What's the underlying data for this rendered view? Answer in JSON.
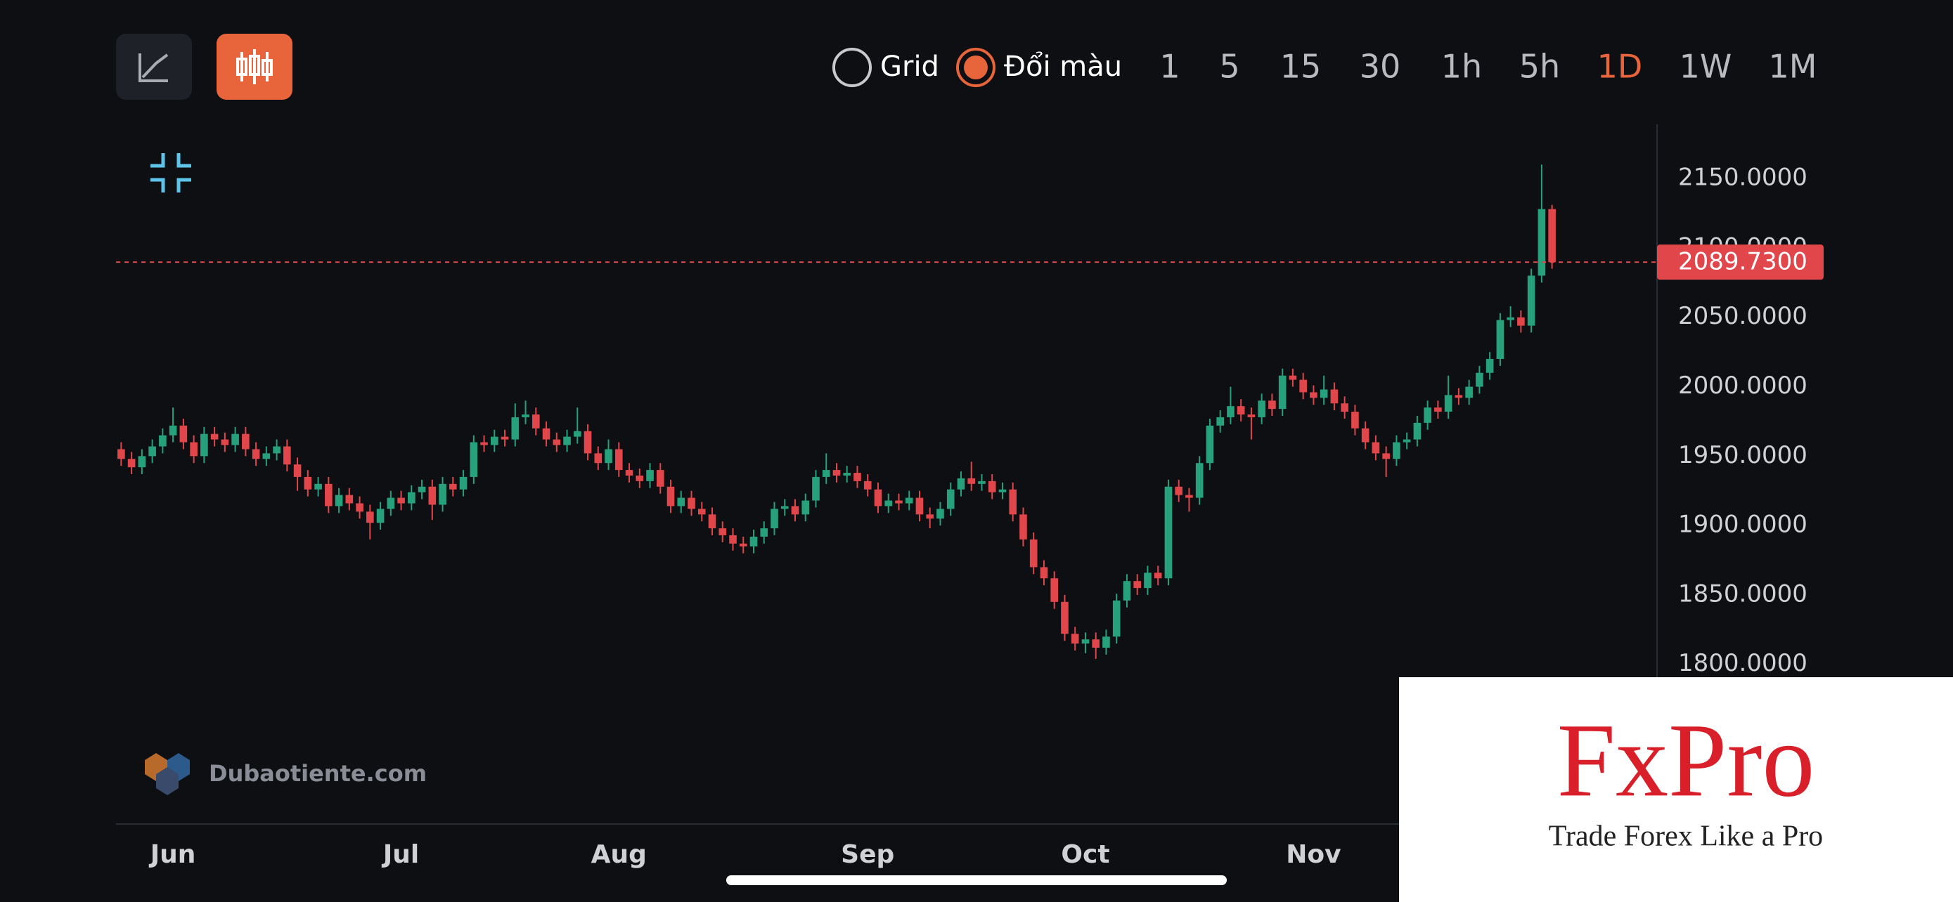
{
  "toolbar": {
    "options": [
      {
        "label": "Grid",
        "checked": false
      },
      {
        "label": "Đổi màu",
        "checked": true
      }
    ],
    "intervals": [
      "1",
      "5",
      "15",
      "30",
      "1h",
      "5h",
      "1D",
      "1W",
      "1M"
    ],
    "active_interval": "1D"
  },
  "chart_data": {
    "type": "candlestick",
    "grid": false,
    "up_color": "#26a17b",
    "down_color": "#e0464a",
    "categories": [
      null,
      null,
      null,
      null,
      null,
      "Jun",
      null,
      null,
      null,
      null,
      null,
      null,
      null,
      null,
      null,
      null,
      null,
      null,
      null,
      null,
      null,
      null,
      null,
      null,
      null,
      null,
      null,
      "Jul",
      null,
      null,
      null,
      null,
      null,
      null,
      null,
      null,
      null,
      null,
      null,
      null,
      null,
      null,
      null,
      null,
      null,
      null,
      null,
      null,
      "Aug",
      null,
      null,
      null,
      null,
      null,
      null,
      null,
      null,
      null,
      null,
      null,
      null,
      null,
      null,
      null,
      null,
      null,
      null,
      null,
      null,
      null,
      null,
      null,
      "Sep",
      null,
      null,
      null,
      null,
      null,
      null,
      null,
      null,
      null,
      null,
      null,
      null,
      null,
      null,
      null,
      null,
      null,
      null,
      null,
      null,
      "Oct",
      null,
      null,
      null,
      null,
      null,
      null,
      null,
      null,
      null,
      null,
      null,
      null,
      null,
      null,
      null,
      null,
      null,
      null,
      null,
      null,
      null,
      "Nov",
      null,
      null,
      null,
      null,
      null,
      null,
      null,
      null,
      null,
      null,
      null,
      null,
      null,
      null,
      null,
      null,
      null,
      null,
      null,
      null,
      null,
      null,
      null
    ],
    "open": [
      1955,
      1948,
      1942,
      1950,
      1957,
      1965,
      1972,
      1960,
      1950,
      1966,
      1962,
      1958,
      1966,
      1955,
      1948,
      1952,
      1957,
      1944,
      1935,
      1926,
      1930,
      1914,
      1922,
      1916,
      1910,
      1902,
      1912,
      1920,
      1916,
      1924,
      1928,
      1915,
      1930,
      1926,
      1935,
      1960,
      1958,
      1964,
      1962,
      1978,
      1980,
      1970,
      1962,
      1958,
      1964,
      1968,
      1952,
      1945,
      1955,
      1940,
      1936,
      1932,
      1940,
      1928,
      1914,
      1920,
      1912,
      1908,
      1898,
      1893,
      1887,
      1885,
      1892,
      1898,
      1912,
      1914,
      1908,
      1918,
      1935,
      1940,
      1936,
      1938,
      1932,
      1926,
      1914,
      1918,
      1916,
      1920,
      1908,
      1905,
      1912,
      1926,
      1934,
      1930,
      1932,
      1924,
      1926,
      1908,
      1890,
      1870,
      1862,
      1845,
      1822,
      1815,
      1818,
      1812,
      1820,
      1846,
      1860,
      1855,
      1866,
      1862,
      1928,
      1922,
      1920,
      1945,
      1972,
      1978,
      1986,
      1980,
      1978,
      1990,
      1984,
      2008,
      2005,
      1996,
      1992,
      1998,
      1988,
      1982,
      1970,
      1960,
      1952,
      1948,
      1960,
      1962,
      1974,
      1985,
      1982,
      1994,
      1992,
      2000,
      2010,
      2020,
      2048,
      2050,
      2044,
      2080,
      2128
    ],
    "high": [
      1960,
      1953,
      1955,
      1962,
      1970,
      1985,
      1977,
      1965,
      1971,
      1971,
      1967,
      1971,
      1971,
      1960,
      1957,
      1962,
      1962,
      1949,
      1940,
      1935,
      1935,
      1927,
      1927,
      1921,
      1915,
      1917,
      1925,
      1925,
      1929,
      1933,
      1933,
      1935,
      1935,
      1940,
      1965,
      1965,
      1969,
      1969,
      1988,
      1990,
      1985,
      1975,
      1967,
      1969,
      1985,
      1973,
      1957,
      1962,
      1960,
      1945,
      1941,
      1945,
      1945,
      1933,
      1925,
      1925,
      1917,
      1913,
      1903,
      1898,
      1892,
      1897,
      1903,
      1917,
      1919,
      1919,
      1923,
      1940,
      1952,
      1945,
      1943,
      1943,
      1937,
      1931,
      1923,
      1923,
      1925,
      1925,
      1913,
      1917,
      1931,
      1939,
      1946,
      1937,
      1937,
      1931,
      1931,
      1913,
      1895,
      1875,
      1867,
      1850,
      1827,
      1823,
      1823,
      1825,
      1851,
      1865,
      1865,
      1871,
      1871,
      1933,
      1933,
      1927,
      1950,
      1977,
      1983,
      2000,
      1991,
      1985,
      1995,
      1995,
      2013,
      2013,
      2010,
      2001,
      2008,
      2003,
      1993,
      1987,
      1975,
      1965,
      1957,
      1965,
      1967,
      1979,
      1990,
      1990,
      2008,
      1999,
      2005,
      2015,
      2025,
      2053,
      2058,
      2055,
      2085,
      2160,
      2131
    ],
    "low": [
      1943,
      1937,
      1937,
      1945,
      1952,
      1960,
      1955,
      1945,
      1945,
      1957,
      1953,
      1953,
      1950,
      1943,
      1943,
      1947,
      1939,
      1925,
      1921,
      1921,
      1909,
      1909,
      1911,
      1905,
      1890,
      1897,
      1907,
      1911,
      1911,
      1919,
      1904,
      1910,
      1921,
      1921,
      1930,
      1953,
      1953,
      1957,
      1957,
      1973,
      1965,
      1957,
      1953,
      1953,
      1959,
      1947,
      1940,
      1940,
      1935,
      1931,
      1927,
      1927,
      1923,
      1909,
      1909,
      1907,
      1903,
      1893,
      1888,
      1882,
      1880,
      1880,
      1887,
      1893,
      1907,
      1903,
      1903,
      1913,
      1930,
      1931,
      1931,
      1927,
      1921,
      1909,
      1909,
      1911,
      1911,
      1903,
      1898,
      1900,
      1907,
      1921,
      1925,
      1925,
      1919,
      1919,
      1903,
      1885,
      1865,
      1857,
      1840,
      1817,
      1810,
      1808,
      1804,
      1807,
      1815,
      1841,
      1850,
      1850,
      1857,
      1857,
      1917,
      1910,
      1915,
      1940,
      1967,
      1973,
      1975,
      1962,
      1973,
      1979,
      1979,
      2000,
      1991,
      1987,
      1987,
      1983,
      1977,
      1965,
      1955,
      1947,
      1935,
      1943,
      1955,
      1957,
      1969,
      1977,
      1977,
      1987,
      1987,
      1995,
      2005,
      2015,
      2043,
      2039,
      2039,
      2075,
      2085
    ],
    "close": [
      1948,
      1942,
      1950,
      1957,
      1965,
      1972,
      1960,
      1950,
      1966,
      1962,
      1958,
      1966,
      1955,
      1948,
      1952,
      1957,
      1944,
      1935,
      1926,
      1930,
      1914,
      1922,
      1916,
      1910,
      1902,
      1912,
      1920,
      1916,
      1924,
      1928,
      1915,
      1930,
      1926,
      1935,
      1960,
      1958,
      1964,
      1962,
      1978,
      1980,
      1970,
      1962,
      1958,
      1964,
      1968,
      1952,
      1945,
      1955,
      1940,
      1936,
      1932,
      1940,
      1928,
      1914,
      1920,
      1912,
      1908,
      1898,
      1893,
      1887,
      1885,
      1892,
      1898,
      1912,
      1914,
      1908,
      1918,
      1935,
      1940,
      1936,
      1938,
      1932,
      1926,
      1914,
      1918,
      1916,
      1920,
      1908,
      1905,
      1912,
      1926,
      1934,
      1930,
      1932,
      1924,
      1926,
      1908,
      1890,
      1870,
      1862,
      1845,
      1822,
      1815,
      1818,
      1812,
      1820,
      1846,
      1860,
      1855,
      1866,
      1862,
      1928,
      1922,
      1920,
      1945,
      1972,
      1978,
      1986,
      1980,
      1978,
      1990,
      1984,
      2008,
      2005,
      1996,
      1992,
      1998,
      1988,
      1982,
      1970,
      1960,
      1952,
      1948,
      1960,
      1962,
      1974,
      1985,
      1982,
      1994,
      1992,
      2000,
      2010,
      2020,
      2048,
      2050,
      2044,
      2080,
      2128,
      2089.73
    ],
    "ylim": [
      1685,
      2189
    ],
    "yticks": [
      {
        "value": 1800,
        "label": "1800.0000"
      },
      {
        "value": 1850,
        "label": "1850.0000"
      },
      {
        "value": 1900,
        "label": "1900.0000"
      },
      {
        "value": 1950,
        "label": "1950.0000"
      },
      {
        "value": 2000,
        "label": "2000.0000"
      },
      {
        "value": 2050,
        "label": "2050.0000"
      },
      {
        "value": 2100,
        "label": "2100.0000"
      },
      {
        "value": 2150,
        "label": "2150.0000"
      }
    ],
    "current_price": {
      "value": 2089.73,
      "label": "2089.7300"
    }
  },
  "watermark": "Dubaotiente.com",
  "ad": {
    "brand": "FxPro",
    "tagline": "Trade Forex Like a Pro"
  }
}
